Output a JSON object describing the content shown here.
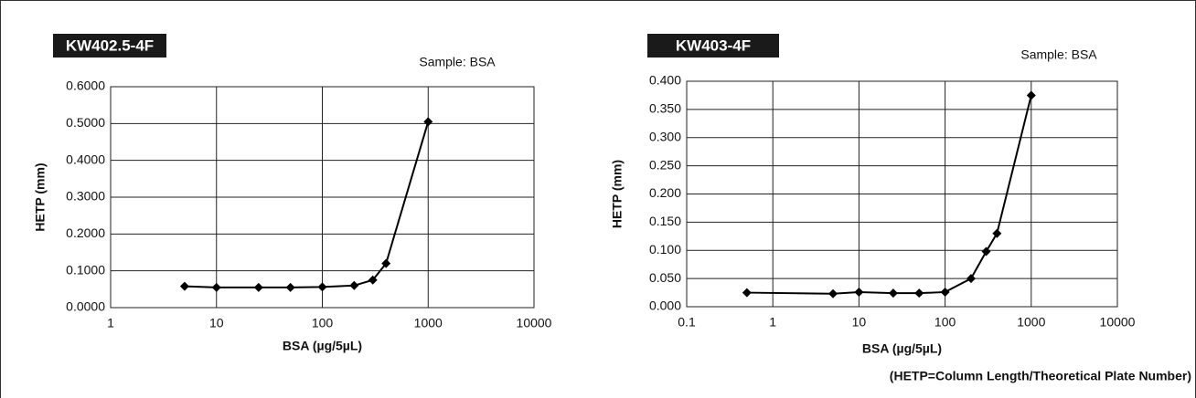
{
  "chart_data": [
    {
      "type": "line",
      "title": "KW402.5-4F",
      "subtitle": "Sample: BSA",
      "x_label": "BSA (µg/5µL)",
      "y_label": "HETP (mm)",
      "x": [
        5,
        10,
        25,
        50,
        100,
        200,
        300,
        400,
        1000
      ],
      "values": [
        0.058,
        0.055,
        0.055,
        0.055,
        0.056,
        0.06,
        0.075,
        0.12,
        0.505
      ],
      "color": "#000000",
      "x_log": true,
      "grid": true,
      "xlim": [
        1,
        10000
      ],
      "xticks": [
        1,
        10,
        100,
        1000,
        10000
      ],
      "ylim": [
        0,
        0.6
      ],
      "yticks": [
        {
          "value": 0,
          "label": "0.0000"
        },
        {
          "value": 0.1,
          "label": "0.1000"
        },
        {
          "value": 0.2,
          "label": "0.2000"
        },
        {
          "value": 0.3,
          "label": "0.3000"
        },
        {
          "value": 0.4,
          "label": "0.4000"
        },
        {
          "value": 0.5,
          "label": "0.5000"
        },
        {
          "value": 0.6,
          "label": "0.6000"
        }
      ]
    },
    {
      "type": "line",
      "title": "KW403-4F",
      "subtitle": "Sample: BSA",
      "x_label": "BSA (µg/5µL)",
      "y_label": "HETP (mm)",
      "x": [
        0.5,
        5,
        10,
        25,
        50,
        100,
        200,
        300,
        400,
        1000
      ],
      "values": [
        0.025,
        0.023,
        0.026,
        0.024,
        0.024,
        0.026,
        0.05,
        0.098,
        0.13,
        0.375
      ],
      "color": "#000000",
      "x_log": true,
      "grid": true,
      "xlim": [
        0.1,
        10000
      ],
      "xticks": [
        0.1,
        1,
        10,
        100,
        1000,
        10000
      ],
      "ylim": [
        0,
        0.4
      ],
      "yticks": [
        {
          "value": 0,
          "label": "0.000"
        },
        {
          "value": 0.05,
          "label": "0.050"
        },
        {
          "value": 0.1,
          "label": "0.100"
        },
        {
          "value": 0.15,
          "label": "0.150"
        },
        {
          "value": 0.2,
          "label": "0.200"
        },
        {
          "value": 0.25,
          "label": "0.250"
        },
        {
          "value": 0.3,
          "label": "0.300"
        },
        {
          "value": 0.35,
          "label": "0.350"
        },
        {
          "value": 0.4,
          "label": "0.400"
        }
      ]
    }
  ],
  "note": "(HETP=Column Length/Theoretical Plate Number)"
}
